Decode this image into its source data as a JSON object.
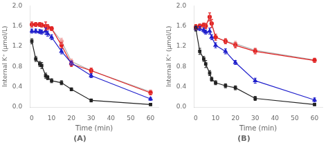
{
  "chart_data": [
    {
      "type": "line",
      "title": "(A)",
      "x_label": "Time (min)",
      "y_label": "Internal K⁺ (μmol/L)",
      "x": [
        0,
        2,
        4,
        5,
        7,
        8,
        10,
        15,
        20,
        30,
        60
      ],
      "series": [
        {
          "color": "#b0b0b0",
          "marker": "none",
          "line_style": "solid",
          "values": [
            1.63,
            1.63,
            1.63,
            1.62,
            1.6,
            1.58,
            1.55,
            1.3,
            0.9,
            0.72,
            0.3
          ]
        },
        {
          "color": "#f0a0a0",
          "marker": "circle",
          "line_style": "none",
          "values": [
            1.63,
            1.63,
            1.63,
            1.62,
            1.6,
            1.58,
            1.55,
            1.3,
            0.9,
            0.72,
            0.3
          ],
          "errors": [
            0.05,
            0.04,
            0.04,
            0.04,
            0.08,
            0.05,
            0.04,
            0.06,
            0.05,
            0.05,
            0.04
          ]
        },
        {
          "color": "#e02020",
          "marker": "circle",
          "line_style": "solid",
          "values": [
            1.63,
            1.63,
            1.63,
            1.62,
            1.6,
            1.58,
            1.55,
            1.22,
            0.85,
            0.72,
            0.28
          ],
          "errors": [
            0.05,
            0.04,
            0.04,
            0.04,
            0.08,
            0.05,
            0.04,
            0.06,
            0.05,
            0.05,
            0.04
          ]
        },
        {
          "color": "#2020cc",
          "marker": "triangle",
          "line_style": "solid",
          "values": [
            1.5,
            1.5,
            1.49,
            1.48,
            1.5,
            1.45,
            1.38,
            1.1,
            0.87,
            0.62,
            0.16
          ],
          "errors": [
            0.04,
            0.04,
            0.04,
            0.04,
            0.06,
            0.05,
            0.05,
            0.05,
            0.04,
            0.04,
            0.03
          ]
        },
        {
          "color": "#222222",
          "marker": "square",
          "line_style": "solid",
          "values": [
            1.3,
            0.95,
            0.85,
            0.82,
            0.62,
            0.58,
            0.52,
            0.48,
            0.35,
            0.13,
            0.05
          ],
          "errors": [
            0.05,
            0.05,
            0.05,
            0.06,
            0.05,
            0.04,
            0.04,
            0.04,
            0.03,
            0.03,
            0.02
          ]
        }
      ],
      "xlim": [
        -1,
        64
      ],
      "xticks": [
        0,
        10,
        20,
        30,
        40,
        50,
        60
      ],
      "ylim": [
        0,
        2.0
      ],
      "yticks": [
        {
          "value": 0,
          "label": "0.0"
        },
        0.4,
        0.8,
        1.2,
        1.6,
        {
          "value": 2.0,
          "label": "2.0"
        }
      ],
      "grid": false
    },
    {
      "type": "line",
      "title": "(B)",
      "x_label": "Time (min)",
      "y_label": "Internal K⁺ (μmol/L)",
      "x": [
        0,
        2,
        4,
        5,
        7,
        8,
        10,
        15,
        20,
        30,
        60
      ],
      "series": [
        {
          "color": "#b0b0b0",
          "marker": "none",
          "line_style": "solid",
          "values": [
            1.58,
            1.6,
            1.62,
            1.6,
            1.78,
            1.65,
            1.38,
            1.3,
            1.25,
            1.12,
            0.93
          ]
        },
        {
          "color": "#f0a0a0",
          "marker": "circle",
          "line_style": "none",
          "values": [
            1.58,
            1.6,
            1.62,
            1.6,
            1.78,
            1.65,
            1.38,
            1.3,
            1.25,
            1.12,
            0.93
          ],
          "errors": [
            0.05,
            0.04,
            0.04,
            0.05,
            0.08,
            0.08,
            0.06,
            0.05,
            0.05,
            0.05,
            0.04
          ]
        },
        {
          "color": "#e02020",
          "marker": "circle",
          "line_style": "solid",
          "values": [
            1.58,
            1.6,
            1.62,
            1.6,
            1.78,
            1.65,
            1.38,
            1.3,
            1.22,
            1.1,
            0.92
          ],
          "errors": [
            0.05,
            0.04,
            0.04,
            0.05,
            0.08,
            0.08,
            0.06,
            0.05,
            0.05,
            0.05,
            0.04
          ]
        },
        {
          "color": "#2020cc",
          "marker": "triangle",
          "line_style": "solid",
          "values": [
            1.55,
            1.55,
            1.52,
            1.48,
            1.5,
            1.38,
            1.22,
            1.1,
            0.88,
            0.52,
            0.14
          ],
          "errors": [
            0.04,
            0.04,
            0.04,
            0.04,
            0.06,
            0.05,
            0.05,
            0.05,
            0.04,
            0.05,
            0.04
          ]
        },
        {
          "color": "#222222",
          "marker": "square",
          "line_style": "solid",
          "values": [
            1.55,
            1.1,
            0.95,
            0.85,
            0.67,
            0.55,
            0.48,
            0.42,
            0.38,
            0.17,
            0.05
          ],
          "errors": [
            0.05,
            0.06,
            0.05,
            0.07,
            0.05,
            0.04,
            0.04,
            0.04,
            0.04,
            0.04,
            0.02
          ]
        }
      ],
      "xlim": [
        -1,
        64
      ],
      "xticks": [
        0,
        10,
        20,
        30,
        40,
        50,
        60
      ],
      "ylim": [
        0,
        2.0
      ],
      "yticks": [
        {
          "value": 0,
          "label": "0.0"
        },
        0.4,
        0.8,
        1.2,
        1.6,
        {
          "value": 2.0,
          "label": "2.0"
        }
      ],
      "grid": false
    }
  ]
}
